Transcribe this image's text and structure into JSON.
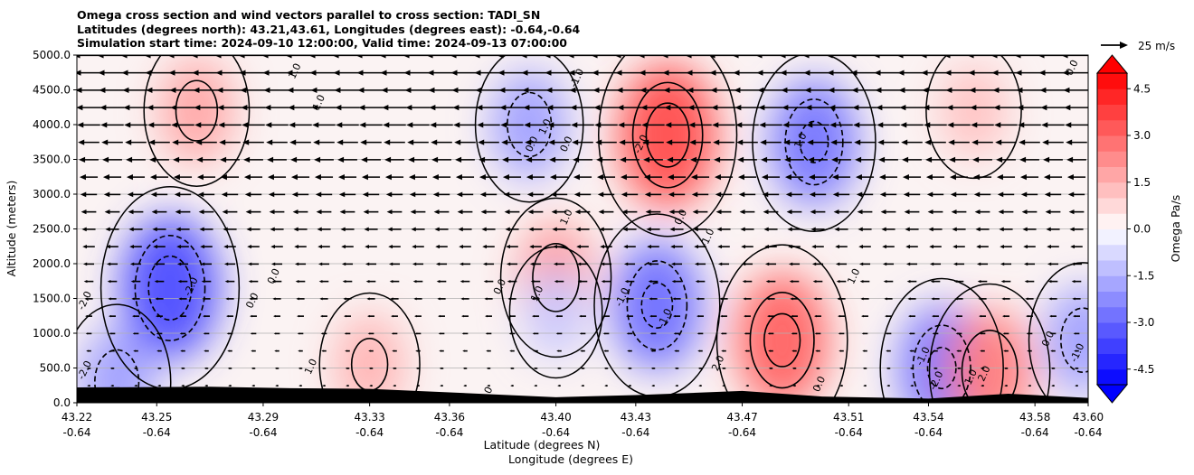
{
  "title_lines": [
    "Omega cross section and wind vectors parallel to cross section: TADI_SN",
    "Latitudes (degrees north): 43.21,43.61, Longitudes (degrees east): -0.64,-0.64",
    "Simulation start time: 2024-09-10 12:00:00, Valid time: 2024-09-13 07:00:00"
  ],
  "chart_data": {
    "type": "heatmap",
    "ylabel": "Altitude (meters)",
    "xlabel_lines": [
      "Latitude (degrees N)",
      "Longitude (degrees E)"
    ],
    "ylim": [
      0,
      5000
    ],
    "y_ticks": [
      "0.0",
      "500.0",
      "1000.0",
      "1500.0",
      "2000.0",
      "2500.0",
      "3000.0",
      "3500.0",
      "4000.0",
      "4500.0",
      "5000.0"
    ],
    "x_ticks": [
      {
        "lat": "43.22",
        "lon": "-0.64"
      },
      {
        "lat": "43.25",
        "lon": "-0.64"
      },
      {
        "lat": "43.29",
        "lon": "-0.64"
      },
      {
        "lat": "43.33",
        "lon": "-0.64"
      },
      {
        "lat": "43.36",
        "lon": "-0.64"
      },
      {
        "lat": "43.40",
        "lon": "-0.64"
      },
      {
        "lat": "43.43",
        "lon": "-0.64"
      },
      {
        "lat": "43.47",
        "lon": "-0.64"
      },
      {
        "lat": "43.51",
        "lon": "-0.64"
      },
      {
        "lat": "43.54",
        "lon": "-0.64"
      },
      {
        "lat": "43.58",
        "lon": "-0.64"
      },
      {
        "lat": "43.60",
        "lon": "-0.64"
      }
    ],
    "grid": "horizontal",
    "colormap": "bwr",
    "colorbar": {
      "label": "Omega Pa/s",
      "range": [
        -5.0,
        5.0
      ],
      "ticks": [
        "-4.5",
        "-3.0",
        "-1.5",
        "0.0",
        "1.5",
        "3.0",
        "4.5"
      ],
      "extend": "both"
    },
    "quiver_key": {
      "label": "25 m/s",
      "value": 25
    },
    "contour_levels": [
      -2.0,
      -1.0,
      0.0,
      1.0,
      2.0
    ],
    "omega_features": [
      {
        "lat": 43.255,
        "alt": 1650,
        "omega": -2.6
      },
      {
        "lat": 43.33,
        "alt": 550,
        "omega": 1.1
      },
      {
        "lat": 43.265,
        "alt": 4200,
        "omega": 1.3
      },
      {
        "lat": 43.235,
        "alt": 300,
        "omega": -1.4
      },
      {
        "lat": 43.39,
        "alt": 4000,
        "omega": -1.4
      },
      {
        "lat": 43.4,
        "alt": 1800,
        "omega": 1.5
      },
      {
        "lat": 43.442,
        "alt": 3850,
        "omega": 2.6
      },
      {
        "lat": 43.438,
        "alt": 1400,
        "omega": -2.1
      },
      {
        "lat": 43.485,
        "alt": 900,
        "omega": 2.3
      },
      {
        "lat": 43.497,
        "alt": 3750,
        "omega": -2.0
      },
      {
        "lat": 43.545,
        "alt": 500,
        "omega": -2.0
      },
      {
        "lat": 43.563,
        "alt": 450,
        "omega": 1.9
      },
      {
        "lat": 43.598,
        "alt": 900,
        "omega": -1.4
      },
      {
        "lat": 43.557,
        "alt": 4200,
        "omega": 0.9
      },
      {
        "lat": 43.4,
        "alt": 1300,
        "omega": -0.8
      }
    ],
    "contour_labels": [
      {
        "lat": 43.224,
        "alt": 1450,
        "text": "-2.0"
      },
      {
        "lat": 43.264,
        "alt": 1650,
        "text": "-2.0"
      },
      {
        "lat": 43.295,
        "alt": 1800,
        "text": "0.0"
      },
      {
        "lat": 43.287,
        "alt": 1450,
        "text": "0.0"
      },
      {
        "lat": 43.312,
        "alt": 4300,
        "text": "1.0"
      },
      {
        "lat": 43.303,
        "alt": 4750,
        "text": "1.0"
      },
      {
        "lat": 43.309,
        "alt": 500,
        "text": "1.0"
      },
      {
        "lat": 43.224,
        "alt": 450,
        "text": "-2.0"
      },
      {
        "lat": 43.392,
        "alt": 3700,
        "text": "0.0"
      },
      {
        "lat": 43.397,
        "alt": 3950,
        "text": "1.0"
      },
      {
        "lat": 43.405,
        "alt": 3700,
        "text": "0.0"
      },
      {
        "lat": 43.409,
        "alt": 4650,
        "text": "-1.0"
      },
      {
        "lat": 43.433,
        "alt": 3700,
        "text": "-2.0"
      },
      {
        "lat": 43.405,
        "alt": 2650,
        "text": "1.0"
      },
      {
        "lat": 43.448,
        "alt": 2650,
        "text": "0.0"
      },
      {
        "lat": 43.458,
        "alt": 2350,
        "text": "-1.0"
      },
      {
        "lat": 43.426,
        "alt": 1500,
        "text": "-1.0"
      },
      {
        "lat": 43.442,
        "alt": 1200,
        "text": "-1.0"
      },
      {
        "lat": 43.394,
        "alt": 1550,
        "text": "1.0"
      },
      {
        "lat": 43.38,
        "alt": 1650,
        "text": "0.0"
      },
      {
        "lat": 43.493,
        "alt": 3750,
        "text": "1.0"
      },
      {
        "lat": 43.513,
        "alt": 1800,
        "text": "1.0"
      },
      {
        "lat": 43.462,
        "alt": 550,
        "text": "2.0"
      },
      {
        "lat": 43.5,
        "alt": 250,
        "text": "0.0"
      },
      {
        "lat": 43.539,
        "alt": 650,
        "text": "-1.0"
      },
      {
        "lat": 43.544,
        "alt": 300,
        "text": "-2.0"
      },
      {
        "lat": 43.557,
        "alt": 350,
        "text": "1.0"
      },
      {
        "lat": 43.562,
        "alt": 400,
        "text": "2.0"
      },
      {
        "lat": 43.586,
        "alt": 900,
        "text": "0.0"
      },
      {
        "lat": 43.597,
        "alt": 700,
        "text": "-1.0"
      },
      {
        "lat": 43.595,
        "alt": 4800,
        "text": "0.0"
      },
      {
        "lat": 43.375,
        "alt": 100,
        "text": "0.0"
      }
    ],
    "terrain": [
      {
        "lat": 43.22,
        "alt": 220
      },
      {
        "lat": 43.27,
        "alt": 230
      },
      {
        "lat": 43.3,
        "alt": 210
      },
      {
        "lat": 43.33,
        "alt": 200
      },
      {
        "lat": 43.36,
        "alt": 150
      },
      {
        "lat": 43.4,
        "alt": 80
      },
      {
        "lat": 43.43,
        "alt": 110
      },
      {
        "lat": 43.47,
        "alt": 170
      },
      {
        "lat": 43.5,
        "alt": 90
      },
      {
        "lat": 43.54,
        "alt": 60
      },
      {
        "lat": 43.57,
        "alt": 130
      },
      {
        "lat": 43.6,
        "alt": 70
      }
    ],
    "wind": {
      "direction": "toward -x",
      "max_speed_mps": 25,
      "max_at_alt": 5000
    }
  }
}
